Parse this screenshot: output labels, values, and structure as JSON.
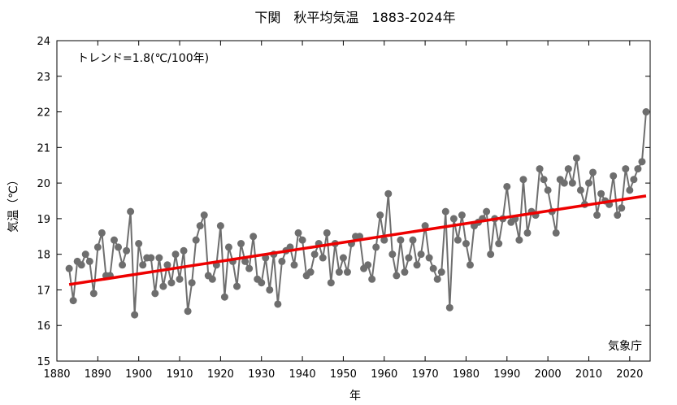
{
  "chart_data": {
    "type": "line",
    "title": "下関　秋平均気温　1883-2024年",
    "xlabel": "年",
    "ylabel": "気温（℃）",
    "annotation": "トレンド=1.8(℃/100年)",
    "credit": "気象庁",
    "xlim": [
      1880,
      2025
    ],
    "ylim": [
      15,
      24
    ],
    "x_ticks": [
      1880,
      1890,
      1900,
      1910,
      1920,
      1930,
      1940,
      1950,
      1960,
      1970,
      1980,
      1990,
      2000,
      2010,
      2020
    ],
    "y_ticks": [
      15,
      16,
      17,
      18,
      19,
      20,
      21,
      22,
      23,
      24
    ],
    "grid": false,
    "series": [
      {
        "x_start": 1883,
        "color": "#6e6e6e",
        "values": [
          17.6,
          16.7,
          17.8,
          17.7,
          18.0,
          17.8,
          16.9,
          18.2,
          18.6,
          17.4,
          17.4,
          18.4,
          18.2,
          17.7,
          18.1,
          19.2,
          16.3,
          18.3,
          17.7,
          17.9,
          17.9,
          16.9,
          17.9,
          17.1,
          17.7,
          17.2,
          18.0,
          17.3,
          18.1,
          16.4,
          17.2,
          18.4,
          18.8,
          19.1,
          17.4,
          17.3,
          17.7,
          18.8,
          16.8,
          18.2,
          17.8,
          17.1,
          18.3,
          17.8,
          17.6,
          18.5,
          17.3,
          17.2,
          17.9,
          17.0,
          18.0,
          16.6,
          17.8,
          18.1,
          18.2,
          17.7,
          18.6,
          18.4,
          17.4,
          17.5,
          18.0,
          18.3,
          17.9,
          18.6,
          17.2,
          18.3,
          17.5,
          17.9,
          17.5,
          18.3,
          18.5,
          18.5,
          17.6,
          17.7,
          17.3,
          18.2,
          19.1,
          18.4,
          19.7,
          18.0,
          17.4,
          18.4,
          17.5,
          17.9,
          18.4,
          17.7,
          18.0,
          18.8,
          17.9,
          17.6,
          17.3,
          17.5,
          19.2,
          16.5,
          19.0,
          18.4,
          19.1,
          18.3,
          17.7,
          18.8,
          18.9,
          19.0,
          19.2,
          18.0,
          19.0,
          18.3,
          19.0,
          19.9,
          18.9,
          19.0,
          18.4,
          20.1,
          18.6,
          19.2,
          19.1,
          20.4,
          20.1,
          19.8,
          19.2,
          18.6,
          20.1,
          20.0,
          20.4,
          20.0,
          20.7,
          19.8,
          19.4,
          20.0,
          20.3,
          19.1,
          19.7,
          19.5,
          19.4,
          20.2,
          19.1,
          19.3,
          20.4,
          19.8,
          20.1,
          20.4,
          20.6,
          22.0
        ]
      }
    ],
    "trend": {
      "color": "#ee0000",
      "x": [
        1883,
        2024
      ],
      "y": [
        17.15,
        19.64
      ]
    }
  }
}
